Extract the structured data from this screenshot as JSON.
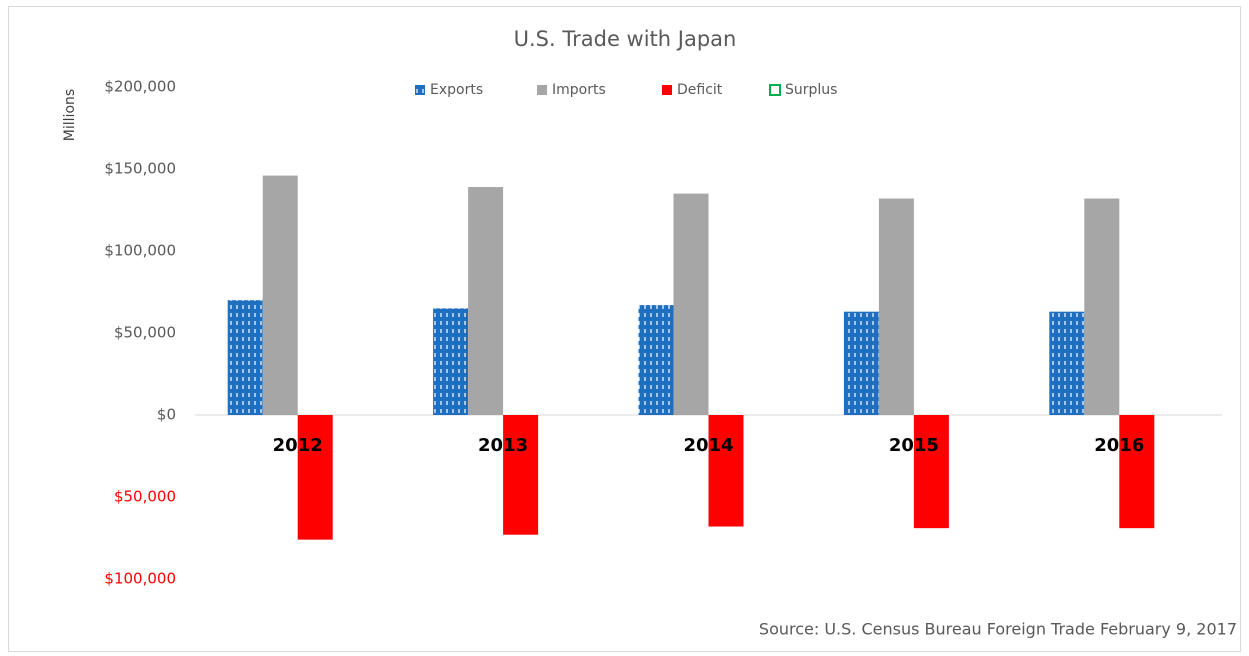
{
  "chart_data": {
    "type": "bar",
    "title": "U.S. Trade with Japan",
    "y_label": "Millions",
    "source": "Source: U.S. Census Bureau Foreign Trade February 9, 2017",
    "categories": [
      "2012",
      "2013",
      "2014",
      "2015",
      "2016"
    ],
    "series": [
      {
        "name": "Exports",
        "color": "#1f6fc0",
        "pattern": "dashes",
        "values": [
          70000,
          65000,
          67000,
          63000,
          63000
        ]
      },
      {
        "name": "Imports",
        "color": "#a6a6a6",
        "values": [
          146000,
          139000,
          135000,
          132000,
          132000
        ]
      },
      {
        "name": "Deficit",
        "color": "#ff0000",
        "values": [
          -76000,
          -73000,
          -68000,
          -69000,
          -69000
        ]
      },
      {
        "name": "Surplus",
        "color": "#00b050",
        "outline": true,
        "values": [
          null,
          null,
          null,
          null,
          null
        ]
      }
    ],
    "ylim": [
      -100000,
      200000
    ],
    "yticks": [
      {
        "value": -100000,
        "label": "$100,000"
      },
      {
        "value": -50000,
        "label": "$50,000"
      },
      {
        "value": 0,
        "label": "$0"
      },
      {
        "value": 50000,
        "label": "$50,000"
      },
      {
        "value": 100000,
        "label": "$100,000"
      },
      {
        "value": 150000,
        "label": "$150,000"
      },
      {
        "value": 200000,
        "label": "$200,000"
      }
    ],
    "negative_tick_color": "#ff0000",
    "grid": false,
    "legend": "top"
  }
}
